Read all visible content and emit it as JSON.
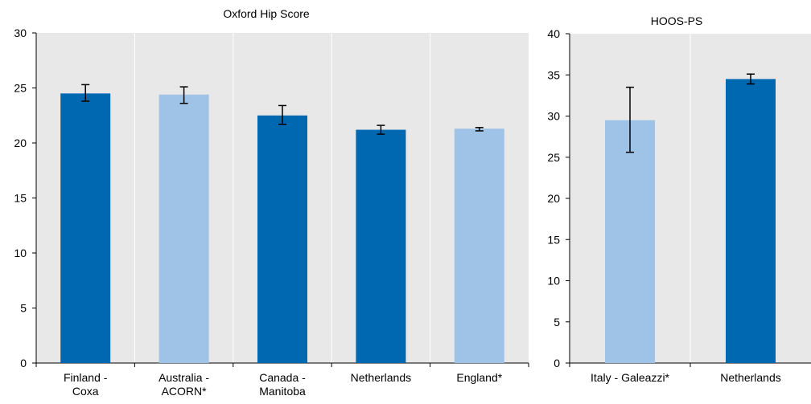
{
  "colors": {
    "dark_bar": "#0067b1",
    "light_bar": "#9ec3e6",
    "panel_bg": "#e8e8e8",
    "grid": "#ffffff",
    "axis": "#000000"
  },
  "chart_data": [
    {
      "type": "bar",
      "title": "Oxford Hip Score",
      "xlabel": "",
      "ylabel": "",
      "ylim": [
        0,
        30
      ],
      "yticks": [
        0,
        5,
        10,
        15,
        20,
        25,
        30
      ],
      "grid": "vertical",
      "categories": [
        [
          "Finland -",
          "Coxa"
        ],
        [
          "Australia -",
          "ACORN*"
        ],
        [
          "Canada -",
          "Manitoba"
        ],
        [
          "Netherlands"
        ],
        [
          "England*"
        ]
      ],
      "values": [
        24.5,
        24.4,
        22.5,
        21.2,
        21.3
      ],
      "error_low": [
        23.8,
        23.6,
        21.7,
        20.8,
        21.1
      ],
      "error_high": [
        25.3,
        25.1,
        23.4,
        21.6,
        21.4
      ],
      "bar_colors": [
        "dark",
        "light",
        "dark",
        "dark",
        "light"
      ]
    },
    {
      "type": "bar",
      "title": "HOOS-PS",
      "xlabel": "",
      "ylabel": "",
      "ylim": [
        0,
        40
      ],
      "yticks": [
        0,
        5,
        10,
        15,
        20,
        25,
        30,
        35,
        40
      ],
      "grid": "vertical",
      "categories": [
        [
          "Italy - Galeazzi*"
        ],
        [
          "Netherlands"
        ]
      ],
      "values": [
        29.5,
        34.5
      ],
      "error_low": [
        25.6,
        33.9
      ],
      "error_high": [
        33.5,
        35.1
      ],
      "bar_colors": [
        "light",
        "dark"
      ]
    }
  ]
}
